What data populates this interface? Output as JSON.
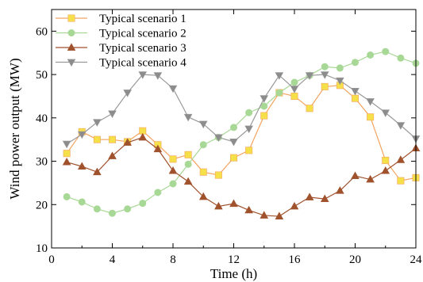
{
  "chart_data": {
    "type": "line",
    "title": "",
    "xlabel": "Time (h)",
    "ylabel": "Wind power output (MW)",
    "xlim": [
      0,
      24
    ],
    "ylim": [
      10,
      65
    ],
    "xticks": [
      0,
      4,
      8,
      12,
      16,
      20,
      24
    ],
    "yticks": [
      10,
      20,
      30,
      40,
      50,
      60
    ],
    "grid": false,
    "legend_position": "top-left",
    "x": [
      1,
      2,
      3,
      4,
      5,
      6,
      7,
      8,
      9,
      10,
      11,
      12,
      13,
      14,
      15,
      16,
      17,
      18,
      19,
      20,
      21,
      22,
      23,
      24
    ],
    "series": [
      {
        "name": "Typical scenario 1",
        "color": "#f4a460",
        "marker_color": "#f5e04a",
        "marker": "square",
        "values": [
          31.8,
          36.8,
          35.0,
          35.0,
          34.5,
          37.0,
          33.8,
          30.5,
          31.5,
          27.5,
          26.8,
          30.8,
          32.5,
          40.5,
          45.8,
          45.0,
          42.2,
          47.2,
          47.5,
          44.5,
          40.2,
          30.2,
          25.5,
          26.2
        ]
      },
      {
        "name": "Typical scenario 2",
        "color": "#a8d896",
        "marker_color": "#a8d896",
        "marker": "circle",
        "values": [
          21.8,
          20.6,
          19.0,
          18.0,
          19.0,
          20.3,
          22.8,
          24.8,
          29.3,
          33.8,
          35.5,
          37.8,
          41.2,
          42.7,
          45.8,
          48.2,
          49.8,
          51.8,
          51.5,
          52.8,
          54.5,
          55.3,
          53.8,
          52.6
        ]
      },
      {
        "name": "Typical scenario 3",
        "color": "#a0522d",
        "marker_color": "#a0522d",
        "marker": "triangle-up",
        "values": [
          29.8,
          28.8,
          27.5,
          31.2,
          34.3,
          35.5,
          32.8,
          27.8,
          25.3,
          21.8,
          19.6,
          20.2,
          18.7,
          17.5,
          17.3,
          19.6,
          21.7,
          21.3,
          23.2,
          26.6,
          25.8,
          27.8,
          30.3,
          33.0
        ]
      },
      {
        "name": "Typical scenario 4",
        "color": "#999999",
        "marker_color": "#8c8c8c",
        "marker": "triangle-down",
        "values": [
          34.0,
          36.2,
          39.0,
          41.0,
          45.8,
          50.0,
          49.8,
          46.8,
          40.2,
          38.6,
          35.5,
          34.5,
          37.5,
          44.5,
          49.8,
          46.7,
          49.8,
          50.0,
          48.6,
          46.2,
          43.8,
          41.2,
          38.3,
          35.2
        ]
      }
    ]
  }
}
